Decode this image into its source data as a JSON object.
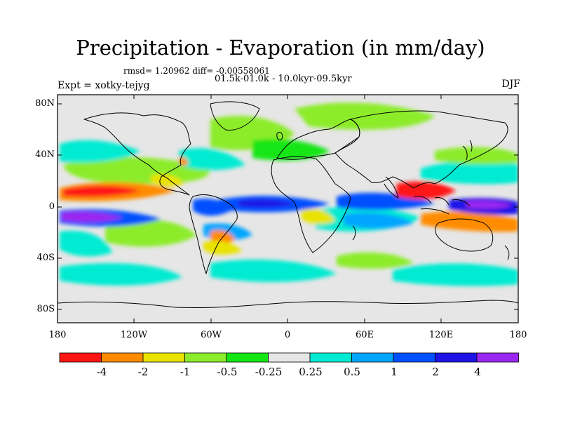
{
  "map": {
    "title": "Precipitation - Evaporation (in mm/day)",
    "stats_line": "rmsd= 1.20962 diff= -0.00558061",
    "period_line": "01.5k-01.0k - 10.0kyr-09.5kyr",
    "experiment_label": "Expt = xotky-tejyg",
    "season_label": "DJF",
    "lat_ticks": [
      "80N",
      "40N",
      "0",
      "40S",
      "80S"
    ],
    "lon_ticks": [
      "180",
      "120W",
      "60W",
      "0",
      "60E",
      "120E",
      "180"
    ],
    "background_color": "#e6e6e6"
  },
  "colorbar": {
    "colors": [
      "#ff1414",
      "#ff8c00",
      "#e8e300",
      "#8cec2c",
      "#14e614",
      "#e6e6e6",
      "#00ebd2",
      "#00a5ff",
      "#0050ff",
      "#1e14e6",
      "#9b28f0"
    ],
    "labels": [
      "-4",
      "-2",
      "-1",
      "-0.5",
      "-0.25",
      "0.25",
      "0.5",
      "1",
      "2",
      "4"
    ]
  }
}
